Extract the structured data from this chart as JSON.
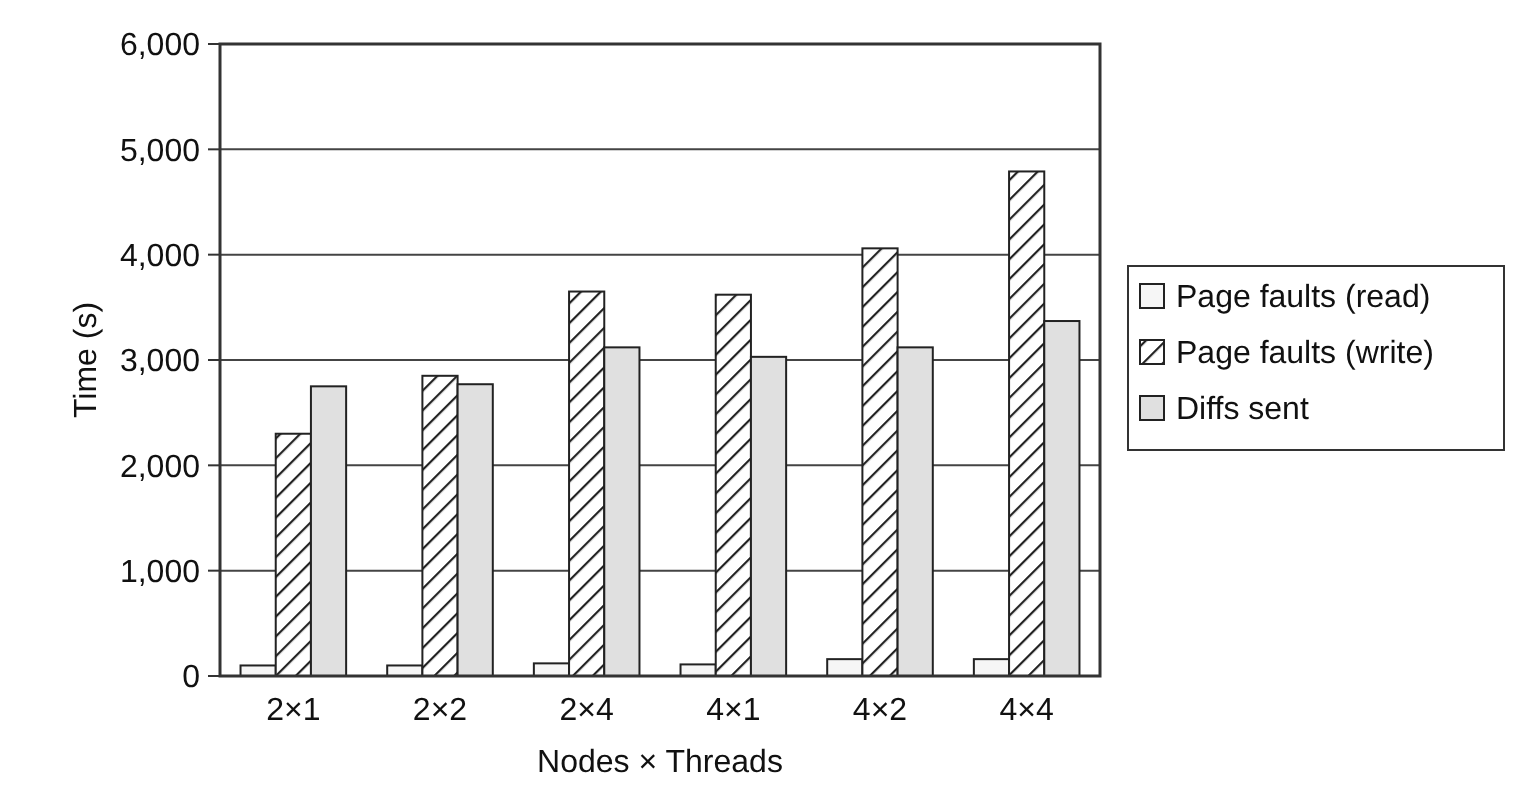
{
  "chart_data": {
    "type": "bar",
    "xlabel": "Nodes × Threads",
    "ylabel": "Time (s)",
    "categories": [
      "2×1",
      "2×2",
      "2×4",
      "4×1",
      "4×2",
      "4×4"
    ],
    "series": [
      {
        "name": "Page faults (read)",
        "color": "#f6f6f6",
        "values": [
          100,
          100,
          120,
          110,
          160,
          160
        ]
      },
      {
        "name": "Page faults (write)",
        "color": "#222222",
        "values": [
          2300,
          2850,
          3650,
          3620,
          4060,
          4790
        ]
      },
      {
        "name": "Diffs sent",
        "color": "#e0e0e0",
        "values": [
          2750,
          2770,
          3120,
          3030,
          3120,
          3370
        ]
      }
    ],
    "ylim": [
      0,
      6000
    ],
    "yticks": [
      {
        "value": 0,
        "label": "0"
      },
      {
        "value": 1000,
        "label": "1,000"
      },
      {
        "value": 2000,
        "label": "2,000"
      },
      {
        "value": 3000,
        "label": "3,000"
      },
      {
        "value": 4000,
        "label": "4,000"
      },
      {
        "value": 5000,
        "label": "5,000"
      },
      {
        "value": 6000,
        "label": "6,000"
      }
    ],
    "grid": "y",
    "legend": "right"
  }
}
